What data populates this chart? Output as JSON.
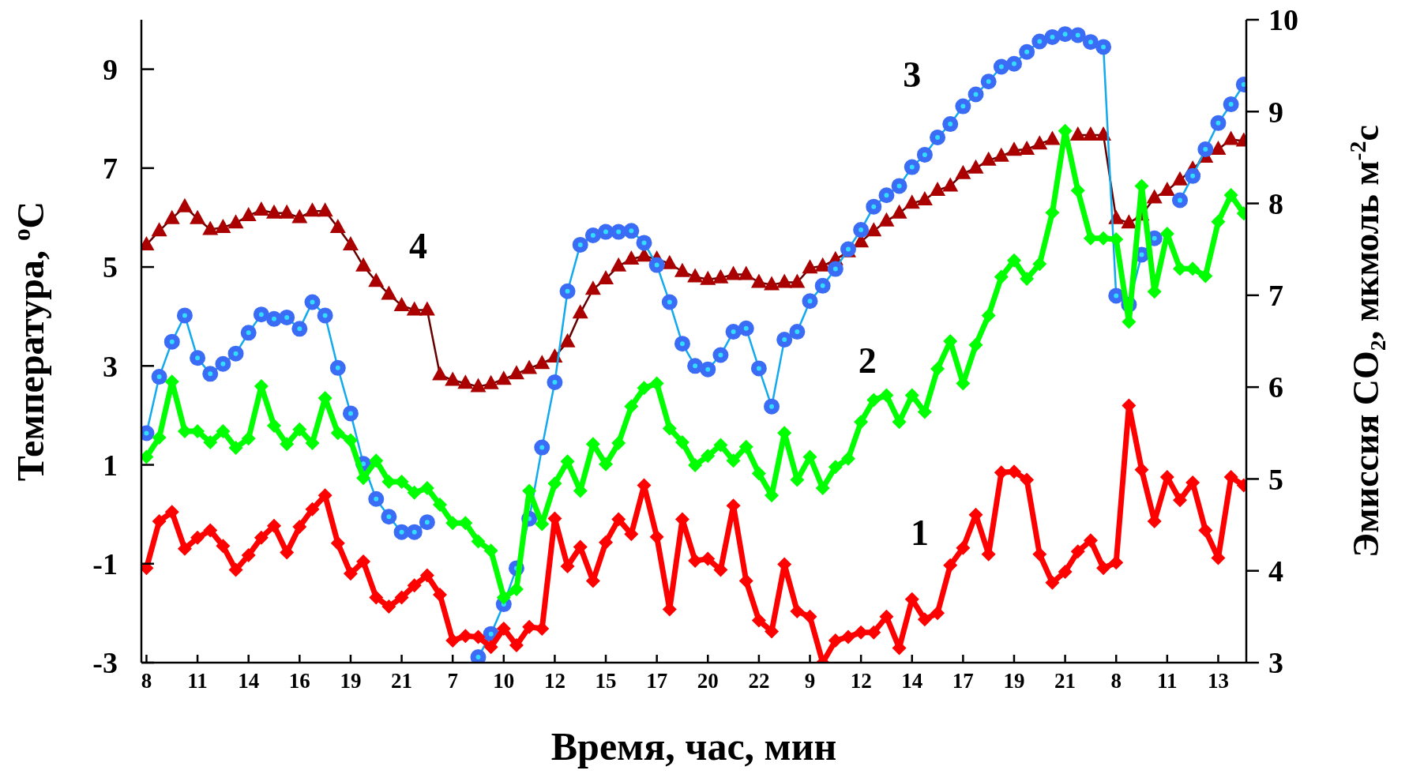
{
  "chart_data": {
    "type": "line",
    "xlabel": "Время, час, мин",
    "ylabel": "Температура, $^{o}$C",
    "y2label": "Эмиссия CO₂, мкмоль м$^{-2}$с",
    "categories": [
      "8",
      null,
      null,
      null,
      "11",
      null,
      null,
      null,
      "14",
      null,
      null,
      null,
      "16",
      null,
      null,
      null,
      "19",
      null,
      null,
      null,
      "21",
      null,
      null,
      null,
      "7",
      null,
      null,
      null,
      "10",
      null,
      null,
      null,
      "12",
      null,
      null,
      null,
      "15",
      null,
      null,
      null,
      "17",
      null,
      null,
      null,
      "20",
      null,
      null,
      null,
      "22",
      null,
      null,
      null,
      "9",
      null,
      null,
      null,
      "12",
      null,
      null,
      null,
      "14",
      null,
      null,
      null,
      "17",
      null,
      null,
      null,
      "19",
      null,
      null,
      null,
      "21",
      null,
      null,
      null,
      "8",
      null,
      null,
      null,
      "11",
      null,
      null,
      null,
      "13",
      null,
      null
    ],
    "ylim": [
      -3,
      10
    ],
    "yticks": [
      -3,
      -1,
      1,
      3,
      5,
      7,
      9
    ],
    "y2lim": [
      3,
      10
    ],
    "y2ticks": [
      3,
      4,
      5,
      6,
      7,
      8,
      9,
      10
    ],
    "series": [
      {
        "name": "1",
        "color": "#ff0000",
        "axis": "y2",
        "marker": "diamond",
        "values": [
          4.03,
          4.54,
          4.64,
          4.24,
          4.36,
          4.44,
          4.27,
          4.01,
          4.17,
          4.36,
          4.49,
          4.2,
          4.48,
          4.67,
          4.82,
          4.3,
          3.97,
          4.1,
          3.71,
          3.61,
          3.71,
          3.84,
          3.95,
          3.74,
          3.24,
          3.29,
          3.28,
          3.17,
          3.37,
          3.19,
          3.39,
          3.37,
          4.57,
          4.05,
          4.26,
          3.89,
          4.31,
          4.56,
          4.4,
          4.93,
          4.37,
          3.58,
          4.56,
          4.11,
          4.13,
          4.01,
          4.71,
          3.89,
          3.46,
          3.34,
          4.07,
          3.56,
          3.5,
          3,
          3.24,
          3.28,
          3.33,
          3.33,
          3.5,
          3.16,
          3.69,
          3.47,
          3.54,
          4.06,
          4.25,
          4.61,
          4.18,
          5.07,
          5.08,
          4.99,
          4.18,
          3.87,
          3.99,
          4.21,
          4.33,
          4.03,
          4.09,
          5.8,
          5.1,
          4.54,
          5.02,
          4.77,
          4.96,
          4.44,
          4.14,
          5.02,
          4.93
        ]
      },
      {
        "name": "2",
        "color": "#00ff00",
        "axis": "y2",
        "marker": "diamond",
        "values": [
          5.24,
          5.45,
          6.06,
          5.52,
          5.52,
          5.4,
          5.52,
          5.34,
          5.44,
          6.01,
          5.58,
          5.38,
          5.54,
          5.39,
          5.88,
          5.5,
          5.42,
          5.01,
          5.2,
          4.97,
          4.97,
          4.85,
          4.9,
          4.72,
          4.52,
          4.52,
          4.32,
          4.22,
          3.71,
          3.8,
          4.87,
          4.51,
          4.95,
          5.19,
          4.87,
          5.38,
          5.16,
          5.39,
          5.79,
          5.99,
          6.04,
          5.55,
          5.4,
          5.15,
          5.25,
          5.37,
          5.2,
          5.35,
          5.06,
          4.82,
          5.5,
          4.99,
          5.24,
          4.9,
          5.13,
          5.22,
          5.62,
          5.86,
          5.91,
          5.62,
          5.91,
          5.73,
          6.2,
          6.5,
          6.04,
          6.46,
          6.78,
          7.2,
          7.38,
          7.18,
          7.34,
          7.9,
          8.79,
          8.14,
          7.62,
          7.62,
          7.61,
          6.71,
          8.19,
          7.04,
          7.67,
          7.29,
          7.29,
          7.21,
          7.8,
          8.09,
          7.89
        ]
      },
      {
        "name": "3",
        "color": "#3b6cf5",
        "marker": "circle",
        "values": [
          1.64,
          2.78,
          3.49,
          4.02,
          3.16,
          2.84,
          3.04,
          3.25,
          3.67,
          4.04,
          3.95,
          3.98,
          3.75,
          4.29,
          4.02,
          2.96,
          2.04,
          1.02,
          0.31,
          -0.05,
          -0.36,
          -0.36,
          -0.16,
          null,
          null,
          null,
          -2.89,
          -2.42,
          -1.82,
          -1.09,
          -0.09,
          1.35,
          2.67,
          4.51,
          5.45,
          5.64,
          5.71,
          5.71,
          5.73,
          5.49,
          5.04,
          4.29,
          3.45,
          3.0,
          2.93,
          3.22,
          3.69,
          3.76,
          2.95,
          2.18,
          3.53,
          3.69,
          4.31,
          4.62,
          4.96,
          5.36,
          5.75,
          6.22,
          6.45,
          6.64,
          7.02,
          7.27,
          7.62,
          7.89,
          8.25,
          8.49,
          8.75,
          9.05,
          9.11,
          9.35,
          9.56,
          9.65,
          9.71,
          9.69,
          9.55,
          9.45,
          4.42,
          4.24,
          5.25,
          5.58,
          null,
          6.35,
          6.84,
          7.38,
          7.91,
          8.29,
          8.69
        ]
      },
      {
        "name": "4",
        "color": "#aa0000",
        "marker": "triangle",
        "values": [
          5.45,
          5.73,
          5.98,
          6.22,
          5.98,
          5.76,
          5.8,
          5.89,
          6.04,
          6.15,
          6.09,
          6.09,
          6.0,
          6.13,
          6.13,
          5.8,
          5.45,
          5.02,
          4.71,
          4.45,
          4.22,
          4.13,
          4.13,
          2.82,
          2.71,
          2.65,
          2.58,
          2.64,
          2.73,
          2.84,
          2.95,
          3.05,
          3.18,
          3.49,
          4.07,
          4.55,
          4.76,
          5.02,
          5.16,
          5.22,
          5.16,
          5.07,
          4.91,
          4.8,
          4.75,
          4.78,
          4.85,
          4.85,
          4.69,
          4.64,
          4.69,
          4.69,
          4.98,
          5.02,
          5.15,
          5.31,
          5.51,
          5.73,
          5.93,
          6.09,
          6.29,
          6.36,
          6.55,
          6.64,
          6.89,
          7.0,
          7.16,
          7.24,
          7.36,
          7.38,
          7.49,
          7.58,
          null,
          7.67,
          7.67,
          7.67,
          5.98,
          5.89,
          6.05,
          6.4,
          6.55,
          6.76,
          6.98,
          7.22,
          7.38,
          7.58,
          7.55
        ]
      }
    ]
  }
}
